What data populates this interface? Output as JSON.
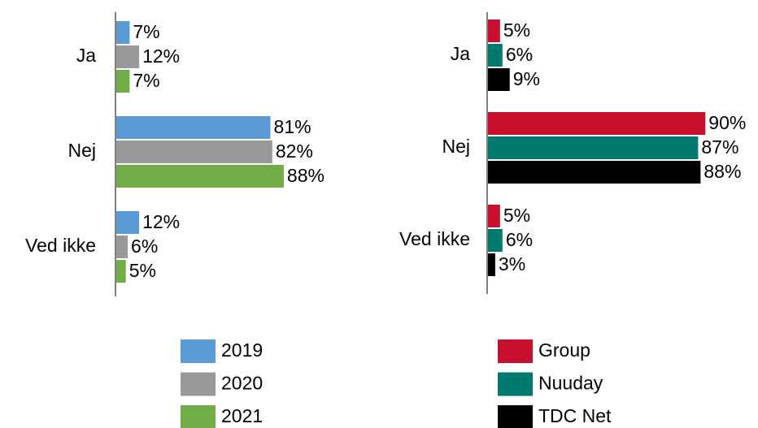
{
  "chart_data": [
    {
      "type": "bar",
      "orientation": "horizontal",
      "categories": [
        "Ja",
        "Nej",
        "Ved ikke"
      ],
      "series": [
        {
          "name": "2019",
          "color": "#5b9bd5",
          "values": [
            7,
            81,
            12
          ],
          "value_labels": [
            "7%",
            "81%",
            "12%"
          ]
        },
        {
          "name": "2020",
          "color": "#999999",
          "values": [
            12,
            82,
            6
          ],
          "value_labels": [
            "12%",
            "82%",
            "6%"
          ]
        },
        {
          "name": "2021",
          "color": "#70ad47",
          "values": [
            7,
            88,
            5
          ],
          "value_labels": [
            "7%",
            "88%",
            "5%"
          ]
        }
      ]
    },
    {
      "type": "bar",
      "orientation": "horizontal",
      "categories": [
        "Ja",
        "Nej",
        "Ved ikke"
      ],
      "series": [
        {
          "name": "Group",
          "color": "#c8102e",
          "values": [
            5,
            90,
            5
          ],
          "value_labels": [
            "5%",
            "90%",
            "5%"
          ]
        },
        {
          "name": "Nuuday",
          "color": "#007a6e",
          "values": [
            6,
            87,
            6
          ],
          "value_labels": [
            "6%",
            "87%",
            "6%"
          ]
        },
        {
          "name": "TDC Net",
          "color": "#000000",
          "values": [
            9,
            88,
            3
          ],
          "value_labels": [
            "9%",
            "88%",
            "3%"
          ]
        }
      ]
    }
  ]
}
